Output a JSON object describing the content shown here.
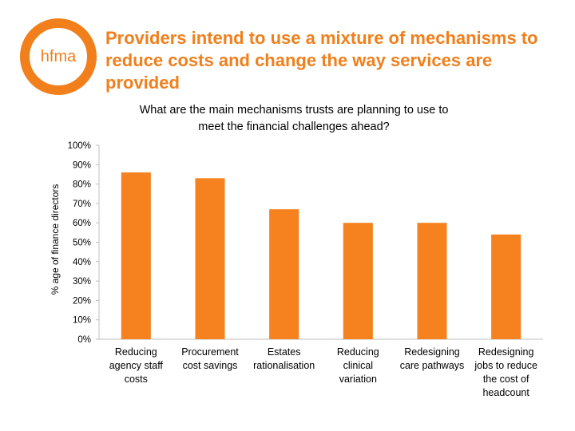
{
  "logo": {
    "text": "hfma",
    "color": "#f07f1c"
  },
  "slide": {
    "title": "Providers intend to use a mixture of mechanisms to reduce costs and change the way services are provided"
  },
  "colors": {
    "accent": "#f07f1c",
    "bar": "#f5821f",
    "axis_text": "#000000",
    "axis_line": "#bfbfbf"
  },
  "chart_data": {
    "type": "bar",
    "title_lines": [
      "What are the main mechanisms trusts are planning to use to",
      "meet the financial challenges ahead?"
    ],
    "ylabel": "% age of finance directors",
    "xlabel": "",
    "ylim": [
      0,
      100
    ],
    "yticks": [
      0,
      10,
      20,
      30,
      40,
      50,
      60,
      70,
      80,
      90,
      100
    ],
    "ytick_labels": [
      "0%",
      "10%",
      "20%",
      "30%",
      "40%",
      "50%",
      "60%",
      "70%",
      "80%",
      "90%",
      "100%"
    ],
    "grid": false,
    "legend": "none",
    "categories": [
      [
        "Reducing",
        "agency staff",
        "costs"
      ],
      [
        "Procurement",
        "cost savings"
      ],
      [
        "Estates",
        "rationalisation"
      ],
      [
        "Reducing",
        "clinical",
        "variation"
      ],
      [
        "Redesigning",
        "care pathways"
      ],
      [
        "Redesigning",
        "jobs to reduce",
        "the cost of",
        "headcount"
      ]
    ],
    "values": [
      86,
      83,
      67,
      60,
      60,
      54
    ]
  }
}
